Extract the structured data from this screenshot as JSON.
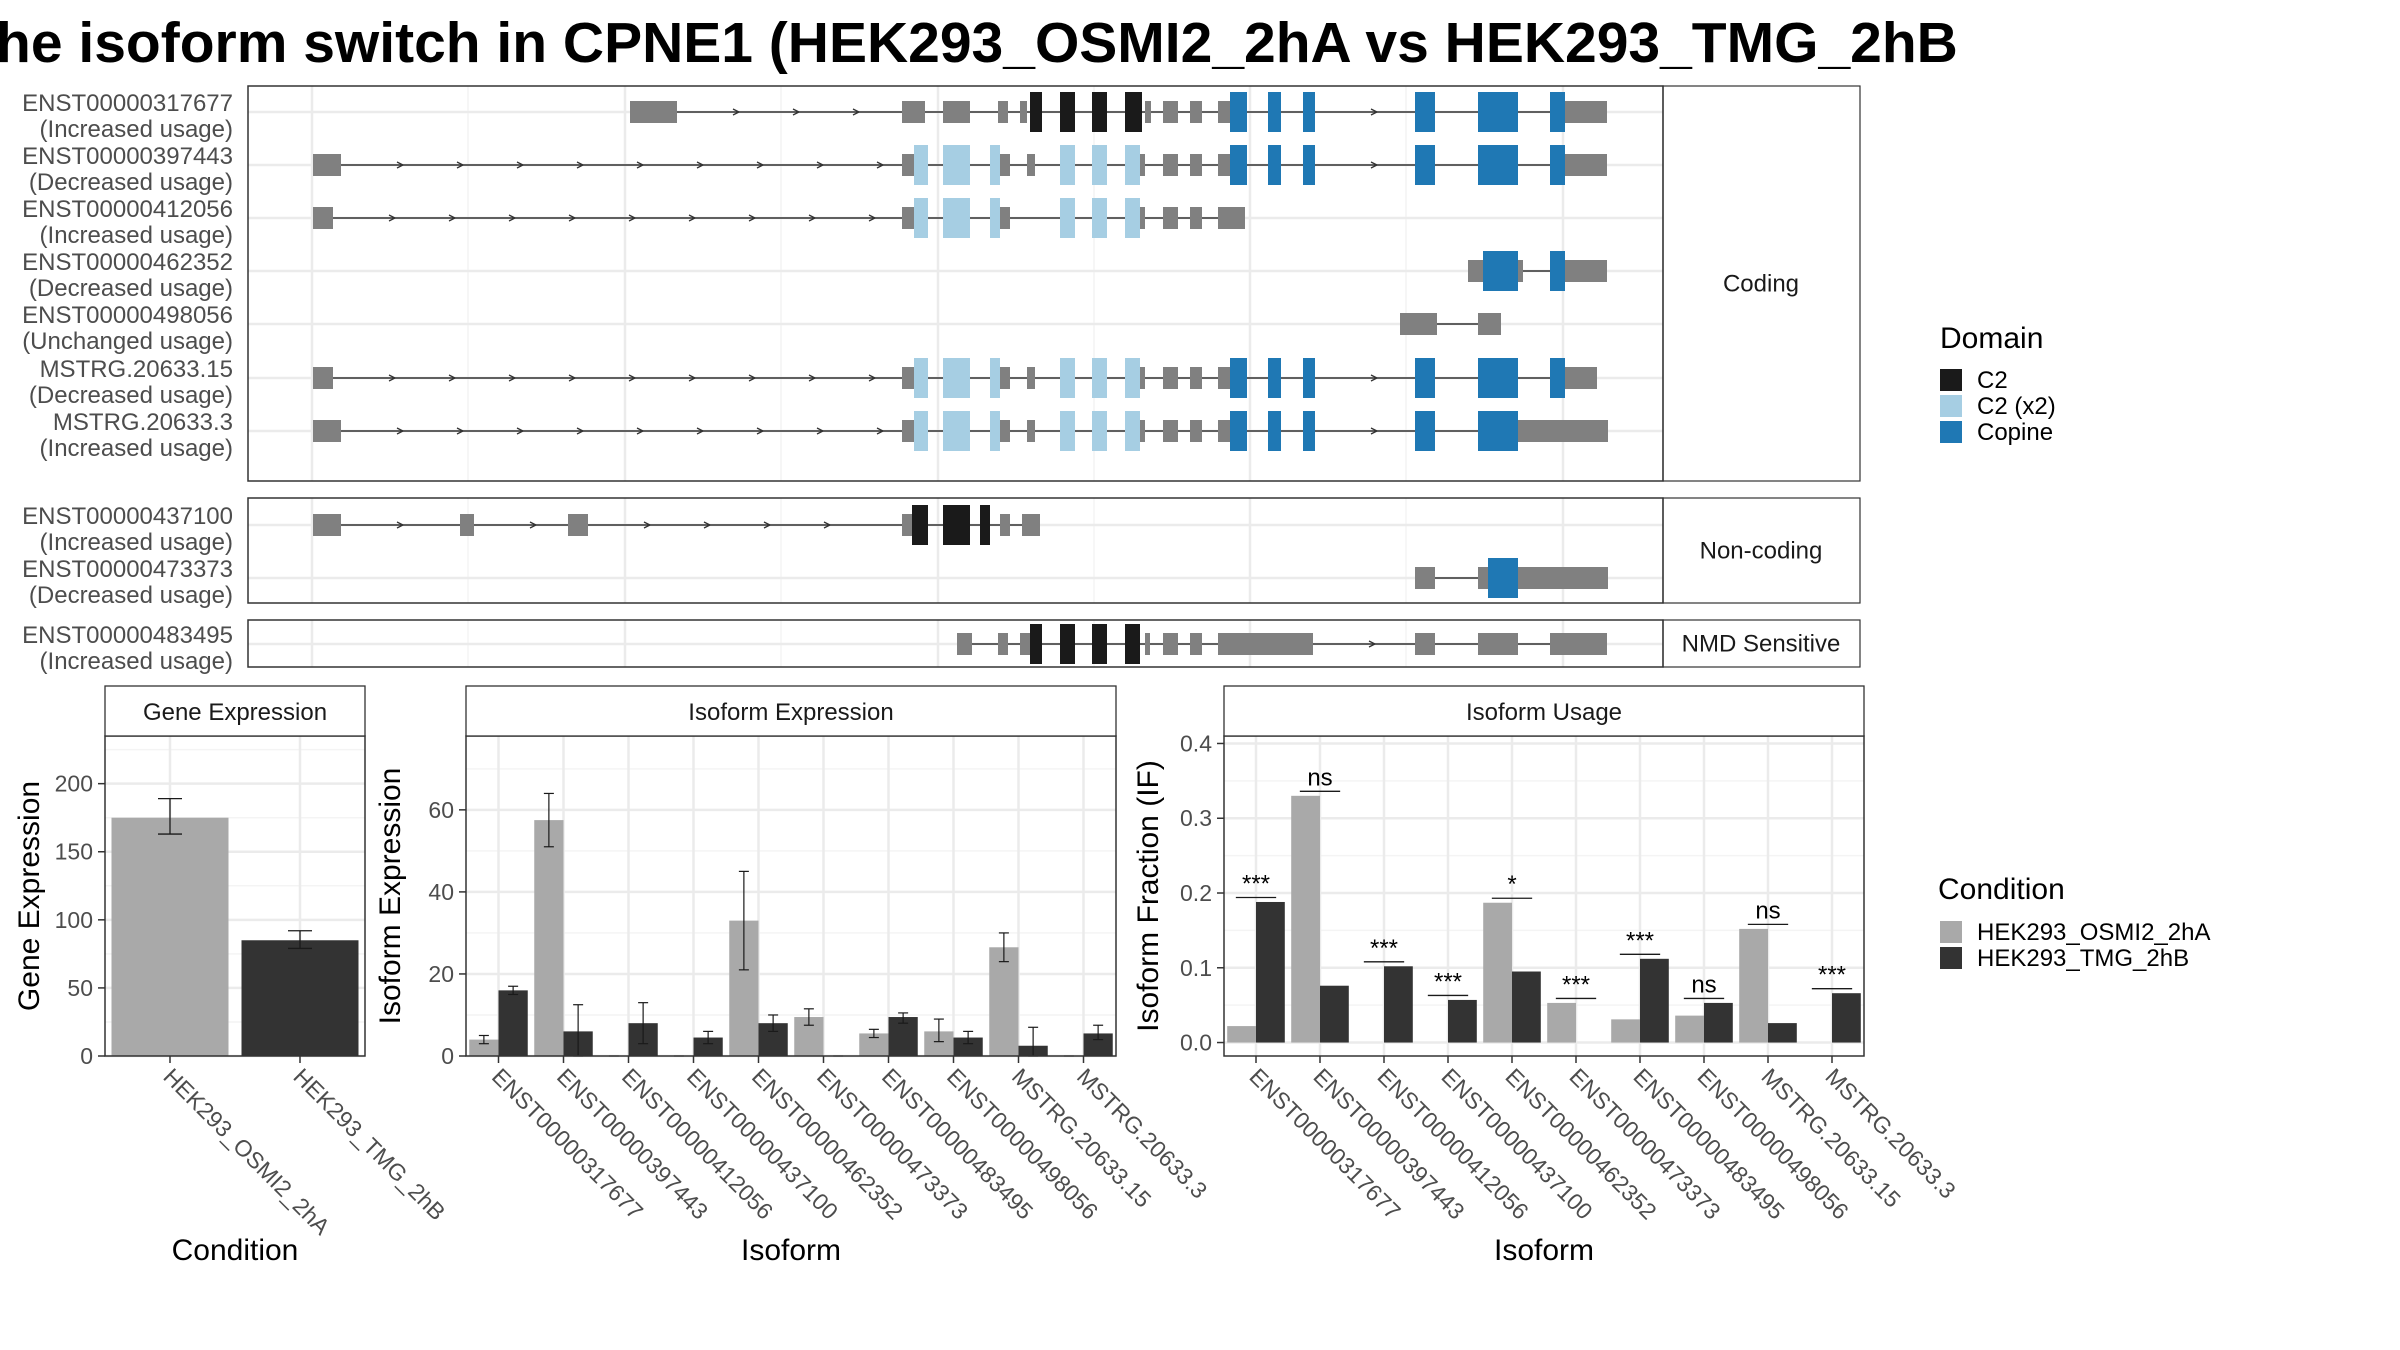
{
  "title": "he isoform switch in CPNE1 (HEK293_OSMI2_2hA vs HEK293_TMG_2hB",
  "colors": {
    "osmi": "#a9a9a9",
    "tmg": "#333333",
    "c2": "#1a1a1a",
    "c2x2": "#a6cee3",
    "copine": "#1f78b4",
    "exon": "#808080"
  },
  "structure": {
    "groups": [
      {
        "label": "Coding",
        "transcripts": [
          {
            "id": "ENST00000317677",
            "usage": "(Increased usage)"
          },
          {
            "id": "ENST00000397443",
            "usage": "(Decreased usage)"
          },
          {
            "id": "ENST00000412056",
            "usage": "(Increased usage)"
          },
          {
            "id": "ENST00000462352",
            "usage": "(Decreased usage)"
          },
          {
            "id": "ENST00000498056",
            "usage": "(Unchanged usage)"
          },
          {
            "id": "MSTRG.20633.15",
            "usage": "(Decreased usage)"
          },
          {
            "id": "MSTRG.20633.3",
            "usage": "(Increased usage)"
          }
        ]
      },
      {
        "label": "Non-coding",
        "transcripts": [
          {
            "id": "ENST00000437100",
            "usage": "(Increased usage)"
          },
          {
            "id": "ENST00000473373",
            "usage": "(Decreased usage)"
          }
        ]
      },
      {
        "label": "NMD Sensitive",
        "transcripts": [
          {
            "id": "ENST00000483495",
            "usage": "(Increased usage)"
          }
        ]
      }
    ],
    "domain_legend": {
      "title": "Domain",
      "items": [
        "C2",
        "C2 (x2)",
        "Copine"
      ]
    }
  },
  "chart_data": [
    {
      "type": "bar",
      "title": "Gene Expression",
      "xlabel": "Condition",
      "ylabel": "Gene Expression",
      "categories": [
        "HEK293_OSMI2_2hA",
        "HEK293_TMG_2hB"
      ],
      "values": [
        175,
        85
      ],
      "errors": [
        [
          163,
          189
        ],
        [
          79,
          92
        ]
      ],
      "ylim": [
        0,
        235
      ],
      "yticks": [
        0,
        50,
        100,
        150,
        200
      ]
    },
    {
      "type": "bar",
      "title": "Isoform Expression",
      "xlabel": "Isoform",
      "ylabel": "Isoform Expression",
      "categories": [
        "ENST00000317677",
        "ENST00000397443",
        "ENST00000412056",
        "ENST00000437100",
        "ENST00000462352",
        "ENST00000473373",
        "ENST00000483495",
        "ENST00000498056",
        "MSTRG.20633.15",
        "MSTRG.20633.3"
      ],
      "series": [
        {
          "name": "HEK293_OSMI2_2hA",
          "values": [
            4.0,
            57.5,
            0.0,
            0.0,
            33.0,
            9.5,
            5.5,
            6.0,
            26.5,
            0.0
          ],
          "errors": [
            [
              3.0,
              5.0
            ],
            [
              51.0,
              64.0
            ],
            [
              0,
              0
            ],
            [
              0,
              0
            ],
            [
              21.0,
              45.0
            ],
            [
              7.5,
              11.5
            ],
            [
              4.5,
              6.5
            ],
            [
              3.5,
              9.0
            ],
            [
              23.0,
              30.0
            ],
            [
              0,
              0
            ]
          ]
        },
        {
          "name": "HEK293_TMG_2hB",
          "values": [
            16.0,
            6.0,
            8.0,
            4.5,
            8.0,
            0.0,
            9.5,
            4.5,
            2.5,
            5.5
          ],
          "errors": [
            [
              15.0,
              17.0
            ],
            [
              0.0,
              12.5
            ],
            [
              3.0,
              13.0
            ],
            [
              3.0,
              6.0
            ],
            [
              6.0,
              10.0
            ],
            [
              0,
              0
            ],
            [
              8.0,
              10.5
            ],
            [
              3.0,
              6.0
            ],
            [
              0.0,
              7.0
            ],
            [
              4.0,
              7.5
            ]
          ]
        }
      ],
      "ylim": [
        0,
        78
      ],
      "yticks": [
        0,
        20,
        40,
        60
      ]
    },
    {
      "type": "bar",
      "title": "Isoform Usage",
      "xlabel": "Isoform",
      "ylabel": "Isoform Fraction (IF)",
      "categories": [
        "ENST00000317677",
        "ENST00000397443",
        "ENST00000412056",
        "ENST00000437100",
        "ENST00000462352",
        "ENST00000473373",
        "ENST00000483495",
        "ENST00000498056",
        "MSTRG.20633.15",
        "MSTRG.20633.3"
      ],
      "series": [
        {
          "name": "HEK293_OSMI2_2hA",
          "values": [
            0.022,
            0.33,
            0.0,
            0.0,
            0.187,
            0.053,
            0.031,
            0.036,
            0.152,
            0.0
          ]
        },
        {
          "name": "HEK293_TMG_2hB",
          "values": [
            0.188,
            0.076,
            0.102,
            0.057,
            0.095,
            0.0,
            0.112,
            0.053,
            0.026,
            0.066
          ]
        }
      ],
      "significance": [
        "***",
        "ns",
        "***",
        "***",
        "*",
        "***",
        "***",
        "ns",
        "ns",
        "***"
      ],
      "ylim": [
        -0.018,
        0.41
      ],
      "yticks": [
        0.0,
        0.1,
        0.2,
        0.3,
        0.4
      ]
    }
  ],
  "condition_legend": {
    "title": "Condition",
    "items": [
      "HEK293_OSMI2_2hA",
      "HEK293_TMG_2hB"
    ]
  }
}
